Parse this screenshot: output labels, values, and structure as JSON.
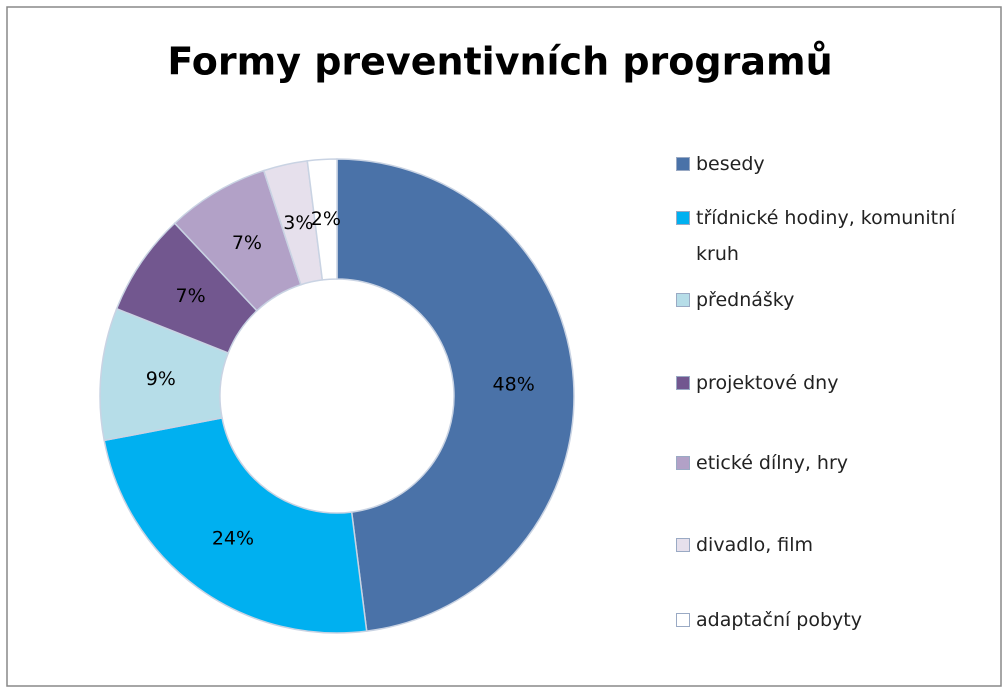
{
  "chart_data": {
    "type": "donut",
    "title": "Formy preventivních programů",
    "categories": [
      "besedy",
      "třídnické hodiny, komunitní kruh",
      "přednášky",
      "projektové dny",
      "etické dílny, hry",
      "divadlo, film",
      "adaptační pobyty"
    ],
    "values": [
      48,
      24,
      9,
      7,
      7,
      3,
      2
    ],
    "value_labels": [
      "48%",
      "24%",
      "9%",
      "7%",
      "7%",
      "3%",
      "2%"
    ],
    "colors": [
      "#4a72a8",
      "#00b0f0",
      "#b6dde8",
      "#72578f",
      "#b2a1c7",
      "#e6e0ec",
      "#ffffff"
    ],
    "legend": "right"
  }
}
